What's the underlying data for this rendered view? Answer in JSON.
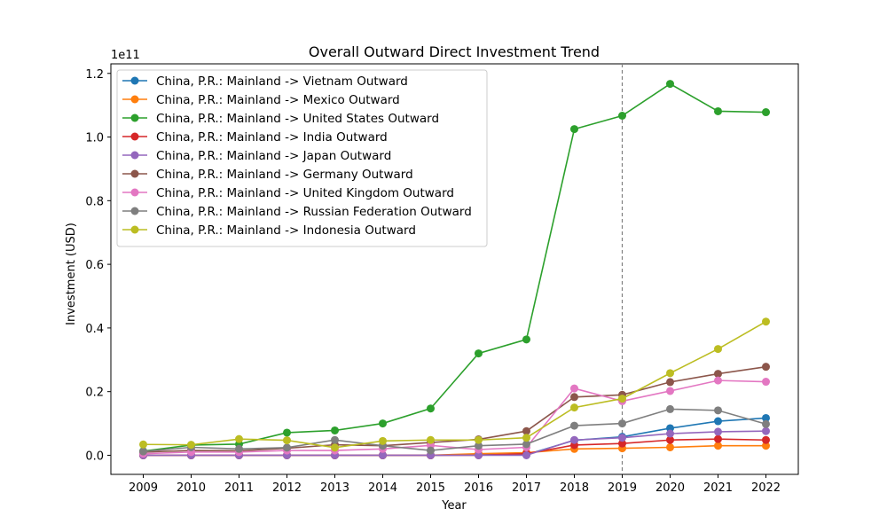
{
  "chart_data": {
    "type": "line",
    "title": "Overall Outward Direct Investment Trend",
    "xlabel": "Year",
    "ylabel": "Investment (USD)",
    "y_scale_label": "1e11",
    "x": [
      "2009",
      "2010",
      "2011",
      "2012",
      "2013",
      "2014",
      "2015",
      "2016",
      "2017",
      "2018",
      "2019",
      "2020",
      "2021",
      "2022"
    ],
    "ylim": [
      -0.06,
      1.23
    ],
    "yticks": [
      0.0,
      0.2,
      0.4,
      0.6,
      0.8,
      1.0,
      1.2
    ],
    "ytick_labels": [
      "0.0",
      "0.2",
      "0.4",
      "0.6",
      "0.8",
      "1.0",
      "1.2"
    ],
    "y_unit_multiplier": 100000000000.0,
    "grid": false,
    "legend_position": "upper-left",
    "reference_line": {
      "x": "2019",
      "style": "dashed",
      "color": "#808080"
    },
    "series": [
      {
        "name": "China, P.R.: Mainland -> Vietnam Outward",
        "color": "#1f77b4",
        "values": [
          0.0,
          0.0,
          0.0,
          0.0,
          0.0,
          0.0,
          0.0,
          0.002,
          0.002,
          0.047,
          0.058,
          0.085,
          0.107,
          0.117
        ]
      },
      {
        "name": "China, P.R.: Mainland -> Mexico Outward",
        "color": "#ff7f0e",
        "values": [
          0.0,
          0.0,
          0.0,
          0.0,
          0.0,
          0.0,
          0.0,
          0.005,
          0.008,
          0.02,
          0.022,
          0.025,
          0.03,
          0.03
        ]
      },
      {
        "name": "China, P.R.: Mainland -> United States Outward",
        "color": "#2ca02c",
        "values": [
          0.013,
          0.032,
          0.035,
          0.071,
          0.078,
          0.1,
          0.147,
          0.32,
          0.364,
          1.025,
          1.067,
          1.167,
          1.081,
          1.078
        ]
      },
      {
        "name": "China, P.R.: Mainland -> India Outward",
        "color": "#d62728",
        "values": [
          0.0,
          0.0,
          0.0,
          0.0,
          0.0,
          0.0,
          0.0,
          0.0,
          0.005,
          0.032,
          0.037,
          0.048,
          0.051,
          0.048
        ]
      },
      {
        "name": "China, P.R.: Mainland -> Japan Outward",
        "color": "#9467bd",
        "values": [
          0.0,
          0.0,
          0.0,
          0.0,
          0.0,
          0.0,
          0.0,
          0.0,
          0.0,
          0.048,
          0.055,
          0.068,
          0.074,
          0.076
        ]
      },
      {
        "name": "China, P.R.: Mainland -> Germany Outward",
        "color": "#8c564b",
        "values": [
          0.01,
          0.015,
          0.014,
          0.022,
          0.033,
          0.03,
          0.04,
          0.05,
          0.076,
          0.183,
          0.19,
          0.23,
          0.256,
          0.278
        ]
      },
      {
        "name": "China, P.R.: Mainland -> United Kingdom Outward",
        "color": "#e377c2",
        "values": [
          0.005,
          0.01,
          0.01,
          0.015,
          0.015,
          0.02,
          0.031,
          0.018,
          0.025,
          0.21,
          0.17,
          0.202,
          0.235,
          0.231
        ]
      },
      {
        "name": "China, P.R.: Mainland -> Russian Federation Outward",
        "color": "#7f7f7f",
        "values": [
          0.012,
          0.025,
          0.02,
          0.024,
          0.048,
          0.03,
          0.015,
          0.03,
          0.035,
          0.093,
          0.1,
          0.145,
          0.141,
          0.098
        ]
      },
      {
        "name": "China, P.R.: Mainland -> Indonesia Outward",
        "color": "#bcbd22",
        "values": [
          0.034,
          0.033,
          0.051,
          0.047,
          0.024,
          0.045,
          0.048,
          0.048,
          0.055,
          0.15,
          0.178,
          0.258,
          0.334,
          0.42
        ]
      }
    ]
  }
}
